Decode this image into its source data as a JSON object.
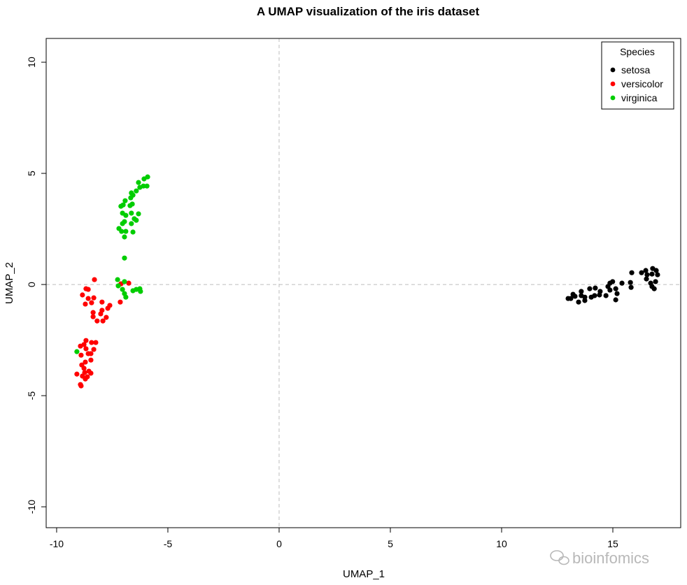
{
  "chart_data": {
    "type": "scatter",
    "title": "A UMAP visualization of the iris dataset",
    "xlabel": "UMAP_1",
    "ylabel": "UMAP_2",
    "xlim": [
      -10.47,
      18.05
    ],
    "ylim": [
      -10.94,
      11.07
    ],
    "xticks": [
      -10,
      -5,
      0,
      5,
      10,
      15
    ],
    "yticks": [
      -10,
      -5,
      0,
      5,
      10
    ],
    "grid": "dashed reference lines at x=0 and y=0",
    "legend": {
      "title": "Species",
      "placement": "top-right"
    },
    "series": [
      {
        "name": "setosa",
        "color": "#000000",
        "points": [
          [
            12.99,
            -0.63
          ],
          [
            13.11,
            -0.63
          ],
          [
            13.21,
            -0.44
          ],
          [
            13.3,
            -0.53
          ],
          [
            13.46,
            -0.79
          ],
          [
            13.58,
            -0.31
          ],
          [
            13.58,
            -0.5
          ],
          [
            13.74,
            -0.72
          ],
          [
            13.74,
            -0.57
          ],
          [
            13.96,
            -0.19
          ],
          [
            14.03,
            -0.57
          ],
          [
            14.21,
            -0.16
          ],
          [
            14.18,
            -0.5
          ],
          [
            14.4,
            -0.47
          ],
          [
            14.43,
            -0.31
          ],
          [
            14.69,
            -0.5
          ],
          [
            14.78,
            -0.09
          ],
          [
            14.87,
            0.06
          ],
          [
            14.99,
            0.13
          ],
          [
            14.87,
            -0.25
          ],
          [
            15.13,
            -0.19
          ],
          [
            15.19,
            -0.41
          ],
          [
            15.13,
            -0.69
          ],
          [
            15.41,
            0.06
          ],
          [
            15.79,
            0.09
          ],
          [
            15.82,
            -0.13
          ],
          [
            15.85,
            0.53
          ],
          [
            16.29,
            0.53
          ],
          [
            16.48,
            0.63
          ],
          [
            16.54,
            0.44
          ],
          [
            16.51,
            0.25
          ],
          [
            16.79,
            0.72
          ],
          [
            16.95,
            0.63
          ],
          [
            17.01,
            0.44
          ],
          [
            16.7,
            0.06
          ],
          [
            16.92,
            0.13
          ],
          [
            16.76,
            -0.09
          ],
          [
            16.86,
            -0.19
          ],
          [
            16.76,
            0.47
          ]
        ]
      },
      {
        "name": "versicolor",
        "color": "#FF0000",
        "points": [
          [
            -8.3,
            0.22
          ],
          [
            -8.68,
            -0.19
          ],
          [
            -8.58,
            -0.22
          ],
          [
            -8.84,
            -0.47
          ],
          [
            -8.58,
            -0.63
          ],
          [
            -8.33,
            -0.6
          ],
          [
            -8.71,
            -0.88
          ],
          [
            -8.43,
            -0.82
          ],
          [
            -7.96,
            -0.79
          ],
          [
            -7.14,
            -0.79
          ],
          [
            -7.61,
            -0.94
          ],
          [
            -7.11,
            0.03
          ],
          [
            -6.76,
            0.06
          ],
          [
            -8.36,
            -1.26
          ],
          [
            -7.96,
            -1.16
          ],
          [
            -8.02,
            -1.32
          ],
          [
            -8.36,
            -1.45
          ],
          [
            -7.77,
            -1.48
          ],
          [
            -8.18,
            -1.64
          ],
          [
            -7.92,
            -1.64
          ],
          [
            -7.7,
            -1.07
          ],
          [
            -8.68,
            -2.52
          ],
          [
            -8.93,
            -2.77
          ],
          [
            -8.77,
            -2.7
          ],
          [
            -8.43,
            -2.61
          ],
          [
            -8.24,
            -2.61
          ],
          [
            -8.68,
            -2.89
          ],
          [
            -8.33,
            -2.92
          ],
          [
            -8.9,
            -3.18
          ],
          [
            -8.58,
            -3.11
          ],
          [
            -8.46,
            -3.11
          ],
          [
            -8.46,
            -3.4
          ],
          [
            -8.71,
            -3.49
          ],
          [
            -8.87,
            -3.62
          ],
          [
            -8.77,
            -3.77
          ],
          [
            -8.74,
            -3.96
          ],
          [
            -8.55,
            -3.9
          ],
          [
            -8.46,
            -3.99
          ],
          [
            -9.09,
            -4.03
          ],
          [
            -8.84,
            -4.12
          ],
          [
            -8.62,
            -4.15
          ],
          [
            -8.71,
            -4.25
          ],
          [
            -8.93,
            -4.5
          ],
          [
            -8.9,
            -4.56
          ]
        ]
      },
      {
        "name": "virginica",
        "color": "#00CD00",
        "points": [
          [
            -5.91,
            4.84
          ],
          [
            -6.07,
            4.75
          ],
          [
            -6.32,
            4.59
          ],
          [
            -5.94,
            4.43
          ],
          [
            -6.1,
            4.43
          ],
          [
            -6.26,
            4.37
          ],
          [
            -6.42,
            4.21
          ],
          [
            -6.64,
            4.12
          ],
          [
            -6.57,
            4.02
          ],
          [
            -6.67,
            3.9
          ],
          [
            -6.92,
            3.77
          ],
          [
            -6.6,
            3.62
          ],
          [
            -6.7,
            3.55
          ],
          [
            -7.01,
            3.58
          ],
          [
            -7.11,
            3.52
          ],
          [
            -7.04,
            3.21
          ],
          [
            -6.89,
            3.11
          ],
          [
            -6.64,
            3.21
          ],
          [
            -6.32,
            3.18
          ],
          [
            -6.51,
            2.96
          ],
          [
            -6.42,
            2.89
          ],
          [
            -6.95,
            2.83
          ],
          [
            -7.04,
            2.74
          ],
          [
            -6.64,
            2.74
          ],
          [
            -7.2,
            2.52
          ],
          [
            -7.08,
            2.39
          ],
          [
            -6.89,
            2.39
          ],
          [
            -6.57,
            2.36
          ],
          [
            -6.95,
            2.14
          ],
          [
            -6.95,
            1.19
          ],
          [
            -7.26,
            0.22
          ],
          [
            -6.95,
            0.13
          ],
          [
            -7.23,
            -0.06
          ],
          [
            -7.04,
            -0.22
          ],
          [
            -6.95,
            -0.41
          ],
          [
            -6.89,
            -0.57
          ],
          [
            -6.57,
            -0.28
          ],
          [
            -6.42,
            -0.22
          ],
          [
            -6.26,
            -0.19
          ],
          [
            -6.23,
            -0.31
          ],
          [
            -9.09,
            -3.02
          ]
        ]
      }
    ]
  },
  "watermark": {
    "text": "bioinfomics",
    "icon": "wechat-icon"
  }
}
